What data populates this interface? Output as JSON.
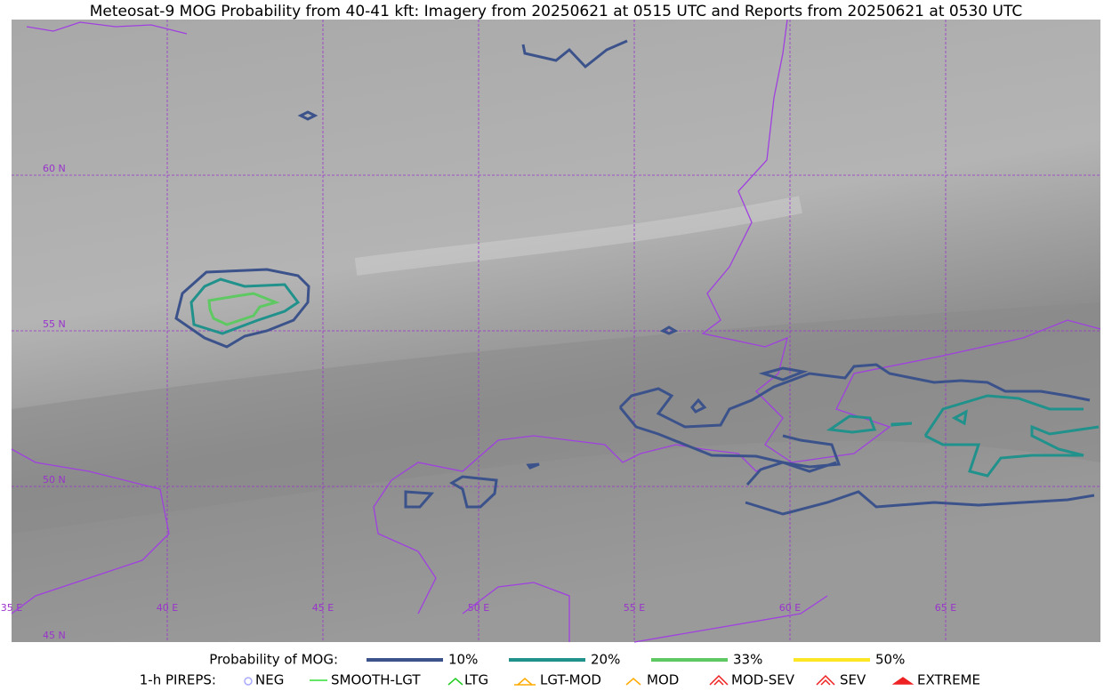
{
  "title": "Meteosat-9 MOG Probability from 40-41 kft: Imagery from 20250621 at 0515 UTC and Reports from 20250621 at 0530 UTC",
  "map": {
    "lat_labels": [
      "60 N",
      "55 N",
      "50 N",
      "45 N"
    ],
    "lon_labels": [
      "35 E",
      "40 E",
      "45 E",
      "50 E",
      "55 E",
      "60 E",
      "65 E"
    ]
  },
  "legend": {
    "probability": {
      "label": "Probability of MOG:",
      "levels": [
        {
          "label": "10%",
          "color": "#3b528b"
        },
        {
          "label": "20%",
          "color": "#21918c"
        },
        {
          "label": "33%",
          "color": "#5ec962"
        },
        {
          "label": "50%",
          "color": "#fde725"
        }
      ]
    },
    "pireps": {
      "label": "1-h PIREPS:",
      "items": [
        {
          "label": "NEG",
          "color": "#aaaaff"
        },
        {
          "label": "SMOOTH-LGT",
          "color": "#33dd33"
        },
        {
          "label": "LTG",
          "color": "#22cc22"
        },
        {
          "label": "LGT-MOD",
          "color": "#ffaa00"
        },
        {
          "label": "MOD",
          "color": "#ffaa00"
        },
        {
          "label": "MOD-SEV",
          "color": "#ee2222"
        },
        {
          "label": "SEV",
          "color": "#ee2222"
        },
        {
          "label": "EXTREME",
          "color": "#ee2222"
        }
      ]
    }
  }
}
